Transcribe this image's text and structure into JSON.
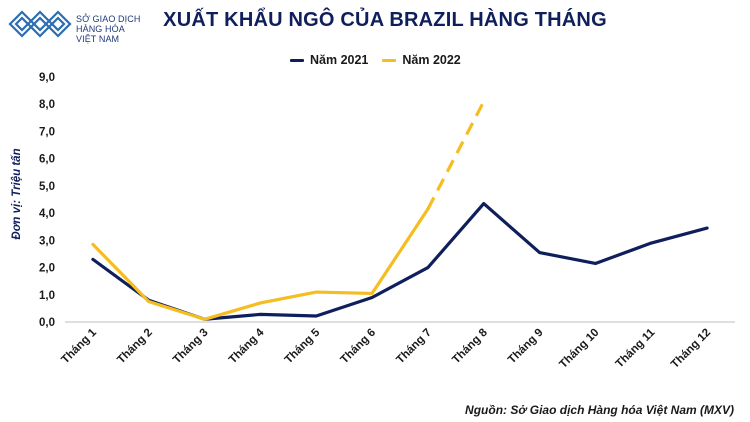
{
  "header": {
    "logo_lines": [
      "SỞ GIAO DỊCH",
      "HÀNG HÓA",
      "VIỆT NAM"
    ],
    "title": "XUẤT KHẨU NGÔ CỦA BRAZIL HÀNG THÁNG"
  },
  "source": "Nguồn: Sở Giao dịch Hàng hóa Việt Nam (MXV)",
  "colors": {
    "series_2021": "#0f1f5c",
    "series_2022": "#f5bd1f",
    "brand": "#1f3a7a"
  },
  "chart_data": {
    "type": "line",
    "title": "XUẤT KHẨU NGÔ CỦA BRAZIL HÀNG THÁNG",
    "xlabel": "",
    "ylabel": "Đơn vị: Triệu tấn",
    "ylim": [
      0,
      9
    ],
    "yticks": [
      "0,0",
      "1,0",
      "2,0",
      "3,0",
      "4,0",
      "5,0",
      "6,0",
      "7,0",
      "8,0",
      "9,0"
    ],
    "grid": false,
    "legend": "top-center",
    "categories": [
      "Tháng 1",
      "Tháng 2",
      "Tháng 3",
      "Tháng 4",
      "Tháng 5",
      "Tháng 6",
      "Tháng 7",
      "Tháng 8",
      "Tháng 9",
      "Tháng 10",
      "Tháng 11",
      "Tháng 12"
    ],
    "series": [
      {
        "name": "Năm 2021",
        "values": [
          2.3,
          0.8,
          0.1,
          0.28,
          0.22,
          0.9,
          2.0,
          4.35,
          2.55,
          2.15,
          2.9,
          3.45
        ]
      },
      {
        "name": "Năm 2022",
        "values": [
          2.85,
          0.75,
          0.1,
          0.7,
          1.1,
          1.05,
          4.15,
          8.1,
          null,
          null,
          null,
          null
        ],
        "dashed_from_index": 6
      }
    ]
  }
}
